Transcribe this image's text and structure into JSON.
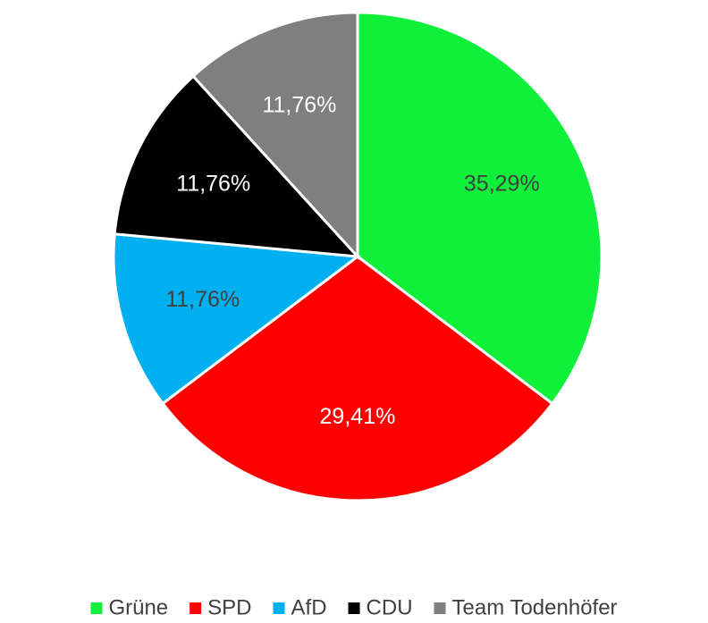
{
  "chart_data": {
    "type": "pie",
    "categories": [
      "Grüne",
      "SPD",
      "AfD",
      "CDU",
      "Team Todenhöfer"
    ],
    "values": [
      35.29,
      29.41,
      11.76,
      11.76,
      11.76
    ],
    "value_labels": [
      "35,29%",
      "29,41%",
      "11,76%",
      "11,76%",
      "11,76%"
    ],
    "colors": [
      "#0ff03a",
      "#ff0000",
      "#00b0f0",
      "#000000",
      "#7f7f7f"
    ],
    "legend": "bottom"
  }
}
